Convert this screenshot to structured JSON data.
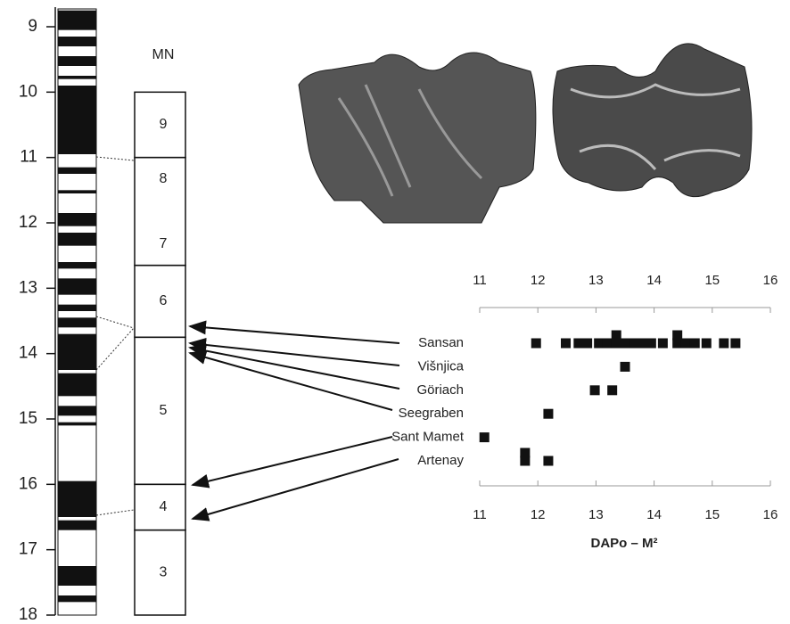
{
  "age_axis": {
    "ylim": [
      8.7,
      18
    ],
    "yticks": [
      9,
      10,
      11,
      12,
      13,
      14,
      15,
      16,
      17,
      18
    ]
  },
  "polarity_black": [
    [
      8.75,
      9.05
    ],
    [
      9.15,
      9.3
    ],
    [
      9.45,
      9.6
    ],
    [
      9.75,
      9.8
    ],
    [
      9.9,
      10.95
    ],
    [
      11.15,
      11.25
    ],
    [
      11.5,
      11.55
    ],
    [
      11.85,
      12.05
    ],
    [
      12.15,
      12.35
    ],
    [
      12.6,
      12.7
    ],
    [
      12.85,
      13.1
    ],
    [
      13.25,
      13.35
    ],
    [
      13.45,
      13.6
    ],
    [
      13.7,
      14.25
    ],
    [
      14.3,
      14.65
    ],
    [
      14.8,
      14.95
    ],
    [
      15.05,
      15.1
    ],
    [
      15.95,
      16.5
    ],
    [
      16.55,
      16.7
    ],
    [
      17.25,
      17.55
    ],
    [
      17.7,
      17.8
    ]
  ],
  "mn": {
    "title": "MN",
    "zones": [
      {
        "labels": [
          "9"
        ],
        "range": [
          10,
          11
        ]
      },
      {
        "labels": [
          "8",
          "7"
        ],
        "range": [
          11,
          12.65
        ]
      },
      {
        "labels": [
          "6"
        ],
        "range": [
          12.65,
          13.75
        ]
      },
      {
        "labels": [
          "5"
        ],
        "range": [
          13.75,
          16
        ]
      },
      {
        "labels": [
          "4"
        ],
        "range": [
          16,
          16.7
        ]
      },
      {
        "labels": [
          "3"
        ],
        "range": [
          16.7,
          18
        ]
      }
    ]
  },
  "chart_data": {
    "type": "scatter",
    "xlabel": "DAPo – M²",
    "xlim": [
      11,
      16
    ],
    "xticks": [
      11,
      12,
      13,
      14,
      15,
      16
    ],
    "color": "#111111",
    "categories": [
      "Sansan",
      "Višnjica",
      "Göriach",
      "Seegraben",
      "Sant Mamet",
      "Artenay"
    ],
    "points": [
      [
        11.97,
        12.48,
        12.7,
        12.85,
        13.05,
        13.2,
        13.35,
        13.35,
        13.5,
        13.65,
        13.8,
        13.95,
        14.15,
        14.4,
        14.4,
        14.55,
        14.7,
        14.9,
        15.2,
        15.4
      ],
      [
        13.5
      ],
      [
        12.98,
        13.28
      ],
      [
        12.18
      ],
      [
        11.08
      ],
      [
        11.78,
        11.78,
        12.18
      ]
    ]
  }
}
